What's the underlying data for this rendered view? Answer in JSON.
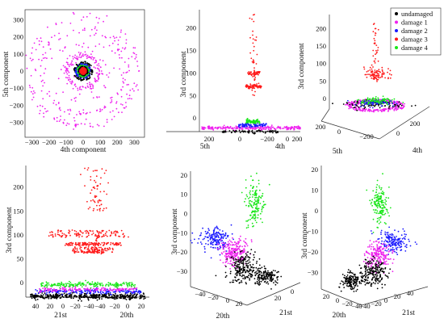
{
  "colors": {
    "undamaged": "#000000",
    "damage1": "#1a1aff",
    "damage2": "#1a1aff",
    "damage3": "#ff1a1a",
    "damage4": "#19e619",
    "ring": "#ee22ee",
    "axis": "#333333"
  },
  "legend": {
    "items": [
      {
        "label": "undamaged",
        "color": "#000000"
      },
      {
        "label": "damage  1",
        "color": "#ee22ee"
      },
      {
        "label": "damage  2",
        "color": "#1a1aff"
      },
      {
        "label": "damage  3",
        "color": "#ff1a1a"
      },
      {
        "label": "damage  4",
        "color": "#19e619"
      }
    ]
  },
  "chart_data": [
    {
      "type": "scatter",
      "panel": "top-left",
      "xlabel": "4th component",
      "ylabel": "5th component",
      "xlim": [
        -350,
        350
      ],
      "ylim": [
        -350,
        350
      ],
      "xticks": [
        "−300",
        "−200",
        "−100",
        "0",
        "100",
        "200",
        "300"
      ],
      "yticks": [
        "300",
        "200",
        "100",
        "0",
        "−100",
        "−200",
        "−300"
      ],
      "series": [
        {
          "name": "damage  1",
          "shape": "ring",
          "radius": [
            240,
            330
          ],
          "center": [
            0,
            0
          ]
        },
        {
          "name": "damage  1",
          "shape": "ring",
          "radius": [
            80,
            120
          ],
          "center": [
            0,
            0
          ]
        },
        {
          "name": "undamaged",
          "shape": "disk",
          "radius": 60,
          "center": [
            0,
            0
          ]
        },
        {
          "name": "damage  2",
          "shape": "disk",
          "radius": 50,
          "center": [
            0,
            0
          ]
        },
        {
          "name": "damage  4",
          "shape": "disk",
          "radius": 40,
          "center": [
            0,
            0
          ]
        },
        {
          "name": "damage  3",
          "shape": "disk",
          "radius": 25,
          "center": [
            0,
            0
          ]
        }
      ]
    },
    {
      "type": "scatter3d",
      "panel": "top-middle",
      "xlabel": "5th",
      "ylabel": "4th",
      "zlabel": "3rd component",
      "xticks": [
        "200",
        "0",
        "−200"
      ],
      "yticks": [
        "0",
        "200"
      ],
      "zticks": [
        "200",
        "150",
        "100",
        "50",
        "0"
      ],
      "zlim": [
        -30,
        240
      ]
    },
    {
      "type": "scatter3d",
      "panel": "top-right",
      "xlabel": "5th",
      "ylabel": "4th",
      "zlabel": "3rd component",
      "xticks": [
        "200",
        "0",
        "−200"
      ],
      "yticks": [
        "0",
        "200"
      ],
      "zticks": [
        "200",
        "150",
        "100",
        "50",
        "0"
      ],
      "zlim": [
        -30,
        240
      ]
    },
    {
      "type": "scatter3d",
      "panel": "bottom-left",
      "xlabel": "21st",
      "ylabel": "20th",
      "zlabel": "3rd component",
      "xticks": [
        "40",
        "20",
        "0",
        "−20",
        "−40"
      ],
      "yticks": [
        "−40",
        "−20",
        "0",
        "20"
      ],
      "zticks": [
        "200",
        "150",
        "100",
        "50",
        "0"
      ],
      "zlim": [
        -30,
        240
      ]
    },
    {
      "type": "scatter3d",
      "panel": "bottom-middle",
      "xlabel": "20th",
      "ylabel": "21st",
      "zlabel": "3rd component",
      "xticks": [
        "−40",
        "−20",
        "0",
        "20"
      ],
      "yticks": [
        "20",
        "0"
      ],
      "zticks": [
        "20",
        "10",
        "0",
        "−10",
        "−20",
        "−30"
      ],
      "zlim": [
        -38,
        22
      ]
    },
    {
      "type": "scatter3d",
      "panel": "bottom-right",
      "xlabel": "20th",
      "ylabel": "21st",
      "zlabel": "3rd component",
      "xticks": [
        "20",
        "0",
        "−20",
        "−40"
      ],
      "yticks": [
        "−40",
        "−20",
        "0",
        "20",
        "40"
      ],
      "zticks": [
        "20",
        "10",
        "0",
        "−10",
        "−20",
        "−30"
      ],
      "zlim": [
        -38,
        22
      ]
    }
  ]
}
